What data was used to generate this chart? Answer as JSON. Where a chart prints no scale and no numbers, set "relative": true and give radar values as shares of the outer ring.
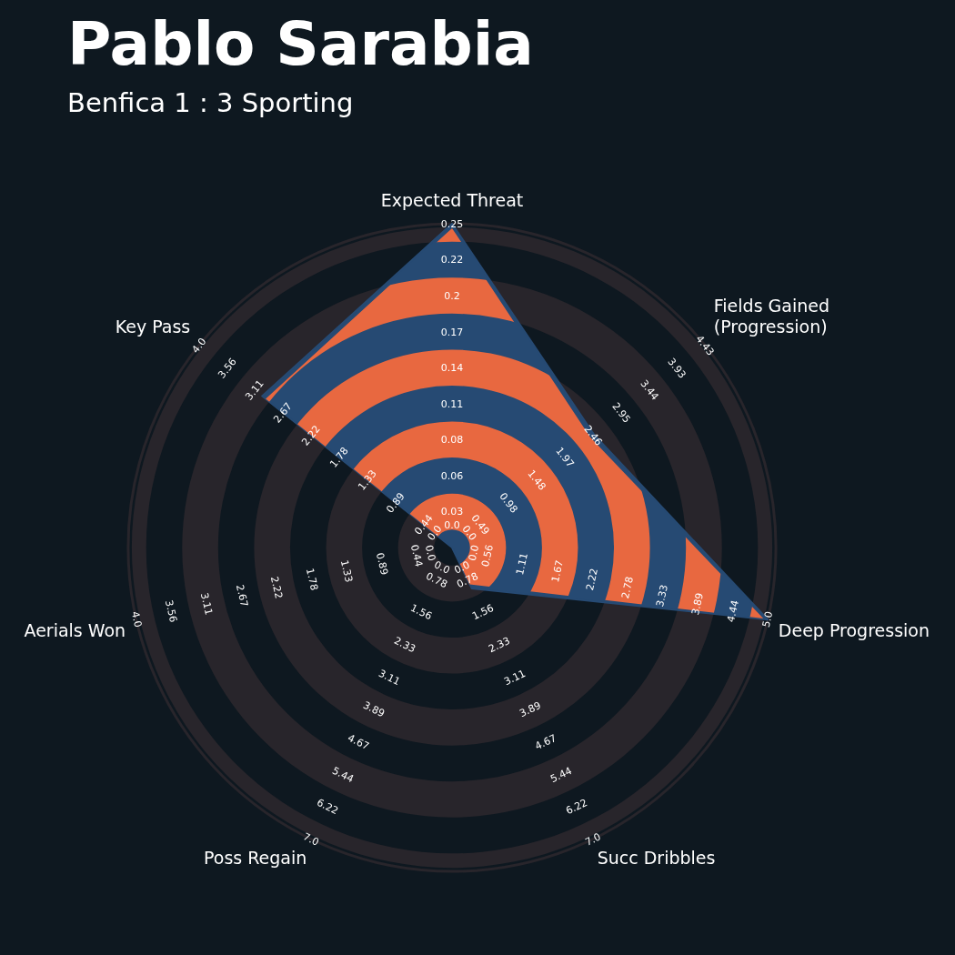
{
  "chart_data": {
    "type": "radar",
    "title": "Pablo Sarabia",
    "subtitle": "Benfica 1 : 3 Sporting",
    "relative": true,
    "marker": "none",
    "categories": [
      "Expected Threat",
      "Fields Gained\n(Progression)",
      "Deep Progression",
      "Succ Dribbles",
      "Poss Regain",
      "Aerials Won",
      "Key Pass"
    ],
    "series": [
      {
        "color": "#264a73",
        "values": [
          1,
          0.56,
          1,
          0.14,
          0,
          0,
          0.75
        ]
      }
    ],
    "annotations": [
      "0.0",
      "0.03",
      "0.06",
      "0.08",
      "0.11",
      "0.14",
      "0.17",
      "0.2",
      "0.22",
      "0.25",
      "0.0",
      "0.49",
      "0.98",
      "1.48",
      "1.97",
      "2.46",
      "2.95",
      "3.44",
      "3.93",
      "4.43",
      "0.0",
      "0.56",
      "1.11",
      "1.67",
      "2.22",
      "2.78",
      "3.33",
      "3.89",
      "4.44",
      "5.0",
      "0.0",
      "0.78",
      "1.56",
      "2.33",
      "3.11",
      "3.89",
      "4.67",
      "5.44",
      "6.22",
      "7.0",
      "0.0",
      "0.78",
      "1.56",
      "2.33",
      "3.11",
      "3.89",
      "4.67",
      "5.44",
      "6.22",
      "7.0",
      "0.0",
      "0.44",
      "0.89",
      "1.33",
      "1.78",
      "2.22",
      "2.67",
      "3.11",
      "3.56",
      "4.0",
      "0.0",
      "0.44",
      "0.89",
      "1.33",
      "1.78",
      "2.22",
      "2.67",
      "3.11",
      "3.56",
      "4.0"
    ]
  }
}
